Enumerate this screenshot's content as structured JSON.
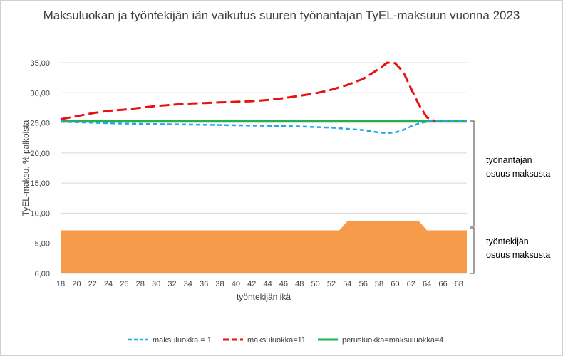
{
  "chart_data": {
    "type": "line",
    "title": "Maksuluokan ja työntekijän iän vaikutus suuren työnantajan TyEL-maksuun vuonna 2023",
    "xlabel": "työntekijän ikä",
    "ylabel": "TyEL-maksu, % palkoista",
    "xlim": [
      18,
      69
    ],
    "ylim": [
      0,
      35
    ],
    "y_ticks": [
      "0,00",
      "5,00",
      "10,00",
      "15,00",
      "20,00",
      "25,00",
      "30,00",
      "35,00"
    ],
    "x_ticks": [
      "18",
      "20",
      "22",
      "24",
      "26",
      "28",
      "30",
      "32",
      "34",
      "36",
      "38",
      "40",
      "42",
      "44",
      "46",
      "48",
      "50",
      "52",
      "54",
      "56",
      "58",
      "60",
      "62",
      "64",
      "66",
      "68"
    ],
    "series": [
      {
        "name": "maksuluokka = 1",
        "style": "dashed",
        "color": "#1fa8e4",
        "x": [
          18,
          25,
          30,
          35,
          40,
          45,
          48,
          50,
          52,
          54,
          56,
          58,
          59,
          60,
          61,
          62,
          63,
          64,
          65,
          69
        ],
        "y": [
          25.2,
          24.9,
          24.8,
          24.7,
          24.6,
          24.5,
          24.4,
          24.3,
          24.2,
          24.0,
          23.8,
          23.4,
          23.3,
          23.4,
          23.8,
          24.4,
          24.9,
          25.2,
          25.3,
          25.3
        ]
      },
      {
        "name": "maksuluokka=11",
        "style": "dash",
        "color": "#e8110f",
        "x": [
          18,
          20,
          22,
          24,
          26,
          28,
          30,
          32,
          34,
          36,
          38,
          40,
          42,
          44,
          46,
          48,
          50,
          52,
          54,
          56,
          58,
          59,
          60,
          61,
          62,
          63,
          64,
          65
        ],
        "y": [
          25.6,
          26.1,
          26.6,
          27.0,
          27.2,
          27.5,
          27.8,
          28.0,
          28.2,
          28.3,
          28.4,
          28.5,
          28.6,
          28.8,
          29.1,
          29.5,
          29.9,
          30.5,
          31.3,
          32.3,
          34.0,
          35.0,
          34.9,
          33.5,
          30.7,
          28.0,
          25.9,
          25.3
        ]
      },
      {
        "name": "perusluokka=maksuluokka=4",
        "style": "solid",
        "color": "#20b24b",
        "x": [
          18,
          69
        ],
        "y": [
          25.3,
          25.3
        ]
      }
    ],
    "employee_share": {
      "color": "#f59b49",
      "x": [
        18,
        53,
        54,
        63,
        64,
        69
      ],
      "y": [
        7.15,
        7.15,
        8.65,
        8.65,
        7.15,
        7.15
      ]
    },
    "annotations": [
      {
        "lines": [
          "työnantajan",
          "osuus maksusta"
        ]
      },
      {
        "lines": [
          "työntekijän",
          "osuus maksusta"
        ]
      }
    ],
    "legend_position": "bottom"
  }
}
